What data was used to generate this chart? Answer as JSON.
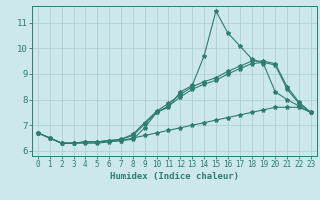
{
  "title": "",
  "xlabel": "Humidex (Indice chaleur)",
  "ylabel": "",
  "bg_color": "#cce8ec",
  "grid_color": "#aacccc",
  "line_color": "#2e7d72",
  "xlim": [
    -0.5,
    23.5
  ],
  "ylim": [
    5.8,
    11.65
  ],
  "xticks": [
    0,
    1,
    2,
    3,
    4,
    5,
    6,
    7,
    8,
    9,
    10,
    11,
    12,
    13,
    14,
    15,
    16,
    17,
    18,
    19,
    20,
    21,
    22,
    23
  ],
  "yticks": [
    6,
    7,
    8,
    9,
    10,
    11
  ],
  "line1": [
    6.7,
    6.5,
    6.3,
    6.3,
    6.35,
    6.35,
    6.4,
    6.4,
    6.45,
    6.9,
    7.5,
    7.7,
    8.3,
    8.55,
    9.7,
    11.45,
    10.6,
    10.1,
    9.6,
    9.4,
    8.3,
    8.0,
    7.75,
    7.5
  ],
  "line2": [
    6.7,
    6.5,
    6.3,
    6.3,
    6.35,
    6.35,
    6.4,
    6.45,
    6.65,
    7.1,
    7.55,
    7.85,
    8.2,
    8.5,
    8.7,
    8.85,
    9.1,
    9.3,
    9.5,
    9.5,
    9.4,
    8.5,
    7.9,
    7.5
  ],
  "line3": [
    6.7,
    6.5,
    6.3,
    6.3,
    6.35,
    6.35,
    6.4,
    6.45,
    6.6,
    7.05,
    7.5,
    7.75,
    8.1,
    8.4,
    8.6,
    8.75,
    9.0,
    9.2,
    9.4,
    9.45,
    9.35,
    8.4,
    7.85,
    7.5
  ],
  "line4": [
    6.7,
    6.5,
    6.3,
    6.3,
    6.3,
    6.3,
    6.35,
    6.4,
    6.5,
    6.6,
    6.7,
    6.8,
    6.9,
    7.0,
    7.1,
    7.2,
    7.3,
    7.4,
    7.5,
    7.6,
    7.7,
    7.7,
    7.7,
    7.5
  ]
}
